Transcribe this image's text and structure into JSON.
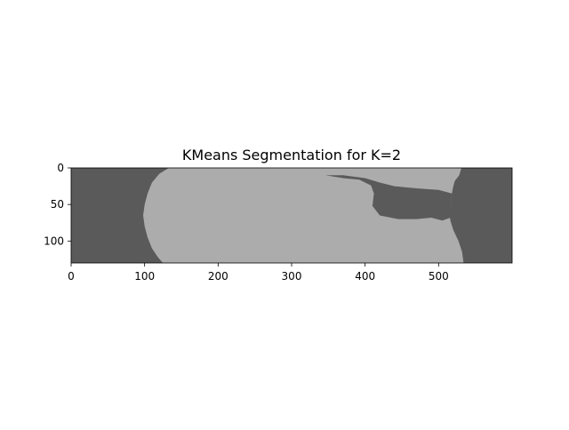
{
  "chart_data": {
    "type": "heatmap",
    "title": "KMeans Segmentation for K=2",
    "xlabel": "",
    "ylabel": "",
    "xlim": [
      0,
      600
    ],
    "ylim": [
      130,
      0
    ],
    "image_shape": [
      130,
      600
    ],
    "x_ticks": [
      0,
      100,
      200,
      300,
      400,
      500
    ],
    "x_tick_labels": [
      "0",
      "100",
      "200",
      "300",
      "400",
      "500"
    ],
    "y_ticks": [
      0,
      50,
      100
    ],
    "y_tick_labels": [
      "0",
      "50",
      "100"
    ],
    "grid": false,
    "legend": "none",
    "clusters": [
      {
        "label": 0,
        "color": "#5a5a5a"
      },
      {
        "label": 1,
        "color": "#acacac"
      }
    ],
    "region_boundaries": {
      "left_boundary": [
        [
          0,
          133
        ],
        [
          8,
          120
        ],
        [
          20,
          110
        ],
        [
          35,
          104
        ],
        [
          50,
          100
        ],
        [
          65,
          98
        ],
        [
          80,
          100
        ],
        [
          95,
          104
        ],
        [
          110,
          110
        ],
        [
          122,
          118
        ],
        [
          130,
          125
        ]
      ],
      "right_boundary": [
        [
          0,
          531
        ],
        [
          10,
          528
        ],
        [
          18,
          522
        ],
        [
          25,
          520
        ],
        [
          35,
          518
        ],
        [
          50,
          517
        ],
        [
          65,
          515
        ],
        [
          72,
          516
        ],
        [
          85,
          520
        ],
        [
          100,
          527
        ],
        [
          115,
          532
        ],
        [
          130,
          534
        ]
      ],
      "dark_lobe": [
        [
          10,
          346
        ],
        [
          14,
          370
        ],
        [
          16,
          392
        ],
        [
          24,
          408
        ],
        [
          35,
          412
        ],
        [
          52,
          410
        ],
        [
          65,
          420
        ],
        [
          70,
          445
        ],
        [
          70,
          470
        ],
        [
          68,
          490
        ],
        [
          72,
          505
        ],
        [
          68,
          516
        ],
        [
          50,
          517
        ],
        [
          35,
          518
        ],
        [
          30,
          500
        ],
        [
          28,
          470
        ],
        [
          25,
          440
        ],
        [
          20,
          420
        ],
        [
          14,
          400
        ],
        [
          10,
          370
        ]
      ]
    }
  }
}
